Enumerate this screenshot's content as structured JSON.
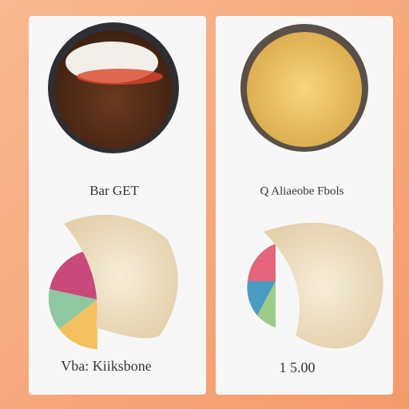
{
  "cards": [
    {
      "heading": "Bar GET",
      "footer": "Vba: Kiiksbone"
    },
    {
      "heading": "Q Aliaeobe Fbols",
      "footer": "1 5.00"
    }
  ]
}
